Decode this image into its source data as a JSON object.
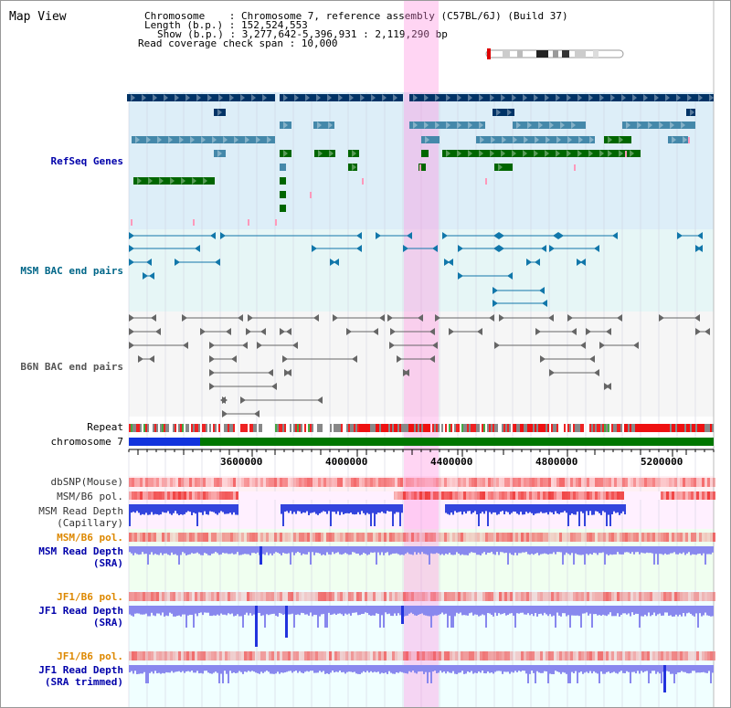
{
  "header": {
    "title": "Map View",
    "info": {
      "chromosome": "Chromosome    : Chromosome 7, reference assembly (C57BL/6J) (Build 37)",
      "length": "Length (b.p.) : 152,524,553",
      "show": "Show (b.p.) : 3,277,642-5,396,931 : 2,119,290 bp",
      "coverage": "Read coverage check span : 10,000"
    }
  },
  "tracks": {
    "refseq": "RefSeq Genes",
    "msm_bac": "MSM BAC end pairs",
    "b6n_bac": "B6N BAC end pairs",
    "repeat": "Repeat",
    "chromosome": "chromosome 7",
    "dbsnp": "dbSNP(Mouse)",
    "msm_b6_pol_1": "MSM/B6 pol.",
    "msm_depth_cap_1": "MSM Read Depth",
    "msm_depth_cap_2": "(Capillary)",
    "msm_b6_pol_2": "MSM/B6 pol.",
    "msm_depth_sra_1": "MSM Read Depth",
    "msm_depth_sra_2": "(SRA)",
    "jf1_b6_pol_1": "JF1/B6 pol.",
    "jf1_depth_sra_1": "JF1 Read Depth",
    "jf1_depth_sra_2": "(SRA)",
    "jf1_b6_pol_2": "JF1/B6 pol.",
    "jf1_depth_trim_1": "JF1 Read Depth",
    "jf1_depth_trim_2": "(SRA trimmed)"
  },
  "ruler": {
    "ticks": [
      "3600000",
      "4000000",
      "4400000",
      "4800000",
      "5200000"
    ]
  },
  "colors": {
    "refseq_label": "#0000aa",
    "msm_label": "#006688",
    "b6n_label": "#555555",
    "pol_msm_label": "#dd8800",
    "depth_label": "#0000aa",
    "highlight": "#ff66dd"
  }
}
